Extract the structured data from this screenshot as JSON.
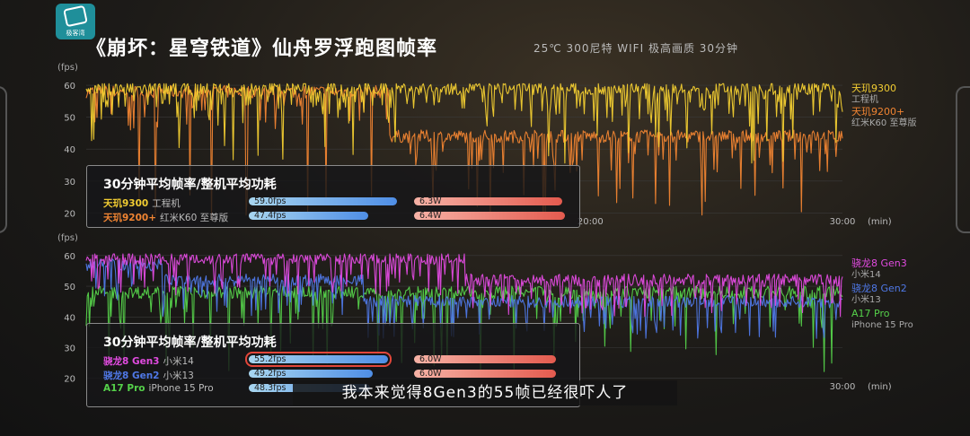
{
  "header": {
    "logo_text": "极客湾",
    "title": "《崩坏：星穹铁道》仙舟罗浮跑图帧率",
    "subtitle": "25℃ 300尼特 WIFI 极高画质 30分钟"
  },
  "caption": "我本来觉得8Gen3的55帧已经很吓人了",
  "chart_data": [
    {
      "type": "line",
      "y_unit": "(fps)",
      "x_unit": "(min)",
      "ylim": [
        17,
        62
      ],
      "xlim": [
        0,
        30
      ],
      "y_ticks": [
        20,
        30,
        40,
        50,
        60
      ],
      "x_tick_labels": [
        {
          "value": 20,
          "label": "20:00"
        },
        {
          "value": 30,
          "label": "30:00"
        }
      ],
      "series": [
        {
          "name": "天玑9300",
          "device": "工程机",
          "color": "#f2cd32",
          "mean": 59.0,
          "typical_dip": 52,
          "deep_dip": 35
        },
        {
          "name": "天玑9200+",
          "device": "红米K60 至尊版",
          "color": "#f08432",
          "mean": 47.4,
          "segments": [
            {
              "x_start": 0,
              "x_end": 12,
              "level": 58
            },
            {
              "x_start": 12,
              "x_end": 30,
              "level": 44
            }
          ],
          "deep_dip": 18
        }
      ],
      "summary": {
        "title": "30分钟平均帧率/整机平均功耗",
        "rows": [
          {
            "name": "天玑9300",
            "device": "工程机",
            "fps": 59.0,
            "fps_label": "59.0fps",
            "watts": 6.3,
            "watts_label": "6.3W",
            "color": "#f2cd32"
          },
          {
            "name": "天玑9200+",
            "device": "红米K60 至尊版",
            "fps": 47.4,
            "fps_label": "47.4fps",
            "watts": 6.4,
            "watts_label": "6.4W",
            "color": "#f08432"
          }
        ]
      }
    },
    {
      "type": "line",
      "y_unit": "(fps)",
      "x_unit": "(min)",
      "ylim": [
        17,
        62
      ],
      "xlim": [
        0,
        30
      ],
      "y_ticks": [
        20,
        30,
        40,
        50,
        60
      ],
      "x_tick_labels": [
        {
          "value": 30,
          "label": "30:00"
        }
      ],
      "series": [
        {
          "name": "骁龙8 Gen3",
          "device": "小米14",
          "color": "#e14be0",
          "mean": 55.2,
          "segments": [
            {
              "x_start": 0,
              "x_end": 15,
              "level": 59
            },
            {
              "x_start": 15,
              "x_end": 30,
              "level": 52
            }
          ]
        },
        {
          "name": "骁龙8 Gen2",
          "device": "小米13",
          "color": "#4f78e6",
          "mean": 49.2,
          "segments": [
            {
              "x_start": 0,
              "x_end": 3,
              "level": 57
            },
            {
              "x_start": 3,
              "x_end": 11,
              "level": 52
            },
            {
              "x_start": 11,
              "x_end": 30,
              "level": 45
            }
          ]
        },
        {
          "name": "A17 Pro",
          "device": "iPhone 15 Pro",
          "color": "#55d14a",
          "mean": 48.3,
          "segments": [
            {
              "x_start": 0,
              "x_end": 30,
              "level": 48
            }
          ],
          "deep_dip": 22
        }
      ],
      "summary": {
        "title": "30分钟平均帧率/整机平均功耗",
        "rows": [
          {
            "name": "骁龙8 Gen3",
            "device": "小米14",
            "fps": 55.2,
            "fps_label": "55.2fps",
            "watts": 6.0,
            "watts_label": "6.0W",
            "color": "#e14be0",
            "highlight": true
          },
          {
            "name": "骁龙8 Gen2",
            "device": "小米13",
            "fps": 49.2,
            "fps_label": "49.2fps",
            "watts": 6.0,
            "watts_label": "6.0W",
            "color": "#4f78e6"
          },
          {
            "name": "A17 Pro",
            "device": "iPhone 15 Pro",
            "fps": 48.3,
            "fps_label": "48.3fps",
            "watts": 0,
            "watts_label": "",
            "color": "#55d14a"
          }
        ]
      }
    }
  ]
}
